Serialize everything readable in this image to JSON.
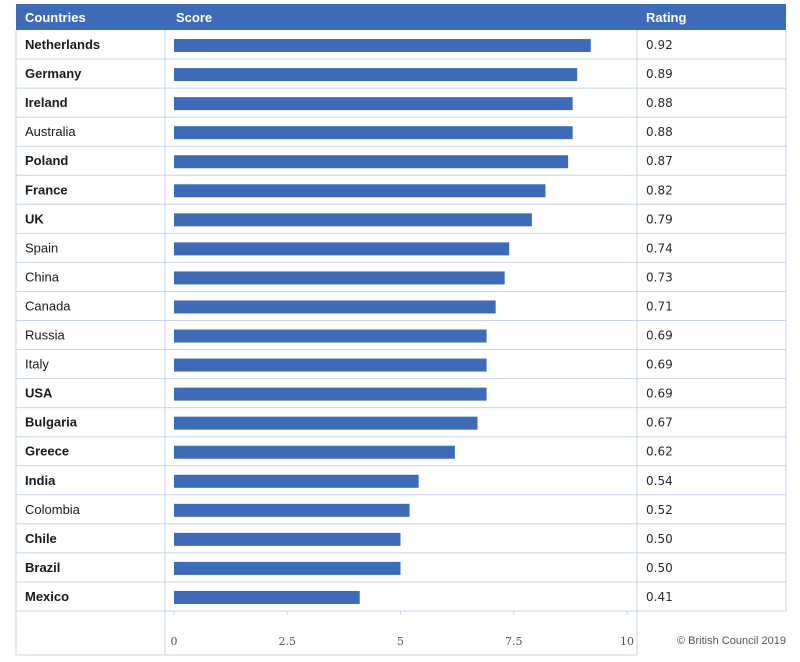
{
  "chart_data": {
    "type": "bar",
    "orientation": "horizontal",
    "headers": {
      "countries": "Countries",
      "score": "Score",
      "rating": "Rating"
    },
    "rows": [
      {
        "country": "Netherlands",
        "score": 9.2,
        "rating": "0.92",
        "bold": true
      },
      {
        "country": "Germany",
        "score": 8.9,
        "rating": "0.89",
        "bold": true
      },
      {
        "country": "Ireland",
        "score": 8.8,
        "rating": "0.88",
        "bold": true
      },
      {
        "country": "Australia",
        "score": 8.8,
        "rating": "0.88",
        "bold": false
      },
      {
        "country": "Poland",
        "score": 8.7,
        "rating": "0.87",
        "bold": true
      },
      {
        "country": "France",
        "score": 8.2,
        "rating": "0.82",
        "bold": true
      },
      {
        "country": "UK",
        "score": 7.9,
        "rating": "0.79",
        "bold": true
      },
      {
        "country": "Spain",
        "score": 7.4,
        "rating": "0.74",
        "bold": false
      },
      {
        "country": "China",
        "score": 7.3,
        "rating": "0.73",
        "bold": false
      },
      {
        "country": "Canada",
        "score": 7.1,
        "rating": "0.71",
        "bold": false
      },
      {
        "country": "Russia",
        "score": 6.9,
        "rating": "0.69",
        "bold": false
      },
      {
        "country": "Italy",
        "score": 6.9,
        "rating": "0.69",
        "bold": false
      },
      {
        "country": "USA",
        "score": 6.9,
        "rating": "0.69",
        "bold": true
      },
      {
        "country": "Bulgaria",
        "score": 6.7,
        "rating": "0.67",
        "bold": true
      },
      {
        "country": "Greece",
        "score": 6.2,
        "rating": "0.62",
        "bold": true
      },
      {
        "country": "India",
        "score": 5.4,
        "rating": "0.54",
        "bold": true
      },
      {
        "country": "Colombia",
        "score": 5.2,
        "rating": "0.52",
        "bold": false
      },
      {
        "country": "Chile",
        "score": 5.0,
        "rating": "0.50",
        "bold": true
      },
      {
        "country": "Brazil",
        "score": 5.0,
        "rating": "0.50",
        "bold": true
      },
      {
        "country": "Mexico",
        "score": 4.1,
        "rating": "0.41",
        "bold": true
      }
    ],
    "xlim": [
      0,
      10
    ],
    "x_ticks": [
      "0",
      "2.5",
      "5",
      "7.5",
      "10"
    ],
    "grid": false,
    "legend": "none",
    "credit": "© British Council 2019"
  },
  "colors": {
    "header_bg": "#3e6bb8",
    "bar": "#3e6bb8",
    "gridline": "#c8d4e8"
  }
}
